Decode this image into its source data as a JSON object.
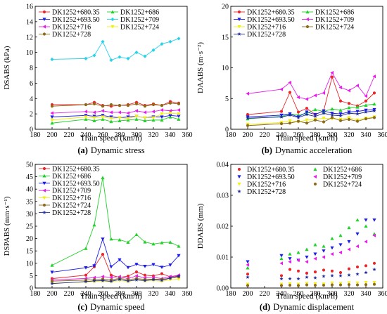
{
  "series_styles": {
    "DK1252+680.35": {
      "color": "#e8262b",
      "marker": "circle"
    },
    "DK1252+686": {
      "color": "#22d12a",
      "marker": "triangle-up"
    },
    "DK1252+693.50": {
      "color": "#1c1ce6",
      "marker": "triangle-down"
    },
    "DK1252+709": {
      "color": "#29d2ea",
      "marker": "diamond"
    },
    "DK1252+716": {
      "color": "#f2ef18",
      "marker": "triangle-down"
    },
    "DK1252+724": {
      "color": "#8c6a1a",
      "marker": "circle"
    },
    "DK1252+728": {
      "color": "#1e2b9c",
      "marker": "star"
    },
    "DK1252+716b": {
      "color": "#e51ee8",
      "marker": "triangle-left"
    }
  },
  "chart_data": [
    {
      "type": "line",
      "caption": {
        "label": "(a)",
        "text": "Dynamic stress"
      },
      "xlabel": "Train speed (km/h)",
      "ylabel": "DSABS (kPa)",
      "xlim": [
        180,
        360
      ],
      "ylim": [
        0,
        16
      ],
      "xticks": [
        180,
        200,
        220,
        240,
        260,
        280,
        300,
        320,
        340,
        360
      ],
      "yticks": [
        0,
        2,
        4,
        6,
        8,
        10,
        12,
        14,
        16
      ],
      "ytick_labels": [
        "0",
        "2",
        "4",
        "6",
        "8",
        "10",
        "12",
        "14",
        "16"
      ],
      "legend": {
        "placement": "top",
        "columns": 2
      },
      "x": [
        200,
        240,
        250,
        260,
        270,
        280,
        290,
        300,
        310,
        320,
        330,
        340,
        350
      ],
      "series": [
        {
          "name": "DK1252+680.35",
          "style": "DK1252+680.35",
          "values": [
            3.2,
            3.2,
            3.5,
            3.1,
            3.0,
            3.1,
            3.2,
            3.5,
            3.1,
            3.3,
            3.1,
            3.6,
            3.4
          ]
        },
        {
          "name": "DK1252+686",
          "style": "DK1252+686",
          "values": [
            0.8,
            1.3,
            1.1,
            1.3,
            1.0,
            1.1,
            1.2,
            1.3,
            1.1,
            1.2,
            1.2,
            1.6,
            1.3
          ]
        },
        {
          "name": "DK1252+693.50",
          "style": "DK1252+693.50",
          "values": [
            1.6,
            1.8,
            1.7,
            1.8,
            1.6,
            1.5,
            1.6,
            1.7,
            1.5,
            1.6,
            1.6,
            1.8,
            1.7
          ]
        },
        {
          "name": "DK1252+709",
          "style": "DK1252+709",
          "values": [
            9.1,
            9.2,
            9.6,
            11.4,
            9.0,
            9.4,
            9.2,
            10.0,
            9.5,
            10.3,
            11.1,
            11.4,
            11.8
          ]
        },
        {
          "name": "DK1252+716",
          "style": "DK1252+716b",
          "values": [
            2.1,
            2.3,
            2.2,
            2.4,
            2.2,
            2.2,
            2.1,
            2.4,
            2.2,
            2.3,
            2.5,
            2.4,
            2.5
          ]
        },
        {
          "name": "DK1252+724",
          "style": "DK1252+716",
          "values": [
            1.2,
            1.6,
            1.5,
            1.6,
            1.4,
            1.5,
            1.4,
            1.7,
            1.5,
            1.5,
            2.0,
            2.1,
            2.0
          ]
        },
        {
          "name": "DK1252+728",
          "style": "DK1252+724",
          "values": [
            3.0,
            3.2,
            3.3,
            3.0,
            3.2,
            3.1,
            3.1,
            3.3,
            3.0,
            3.2,
            3.1,
            3.4,
            3.3
          ]
        }
      ]
    },
    {
      "type": "line",
      "caption": {
        "label": "(b)",
        "text": "Dynamic acceleration"
      },
      "xlabel": "Train speed (km/h)",
      "ylabel": "DAABS (m·s⁻²)",
      "xlim": [
        180,
        360
      ],
      "ylim": [
        0,
        20
      ],
      "xticks": [
        180,
        200,
        220,
        240,
        260,
        280,
        300,
        320,
        340,
        360
      ],
      "yticks": [
        0,
        5,
        10,
        15,
        20
      ],
      "ytick_labels": [
        "0",
        "5",
        "10",
        "15",
        "20"
      ],
      "legend": {
        "placement": "top",
        "columns": 2
      },
      "x": [
        200,
        240,
        250,
        260,
        270,
        280,
        290,
        300,
        310,
        320,
        330,
        340,
        350
      ],
      "series": [
        {
          "name": "DK1252+680.35",
          "style": "DK1252+680.35",
          "values": [
            2.4,
            2.9,
            6.0,
            2.8,
            3.4,
            2.4,
            3.0,
            8.5,
            4.6,
            4.2,
            3.8,
            4.6,
            5.9
          ]
        },
        {
          "name": "DK1252+686",
          "style": "DK1252+686",
          "values": [
            1.7,
            2.1,
            2.5,
            2.3,
            2.6,
            3.2,
            2.9,
            3.3,
            3.1,
            3.5,
            3.6,
            3.9,
            4.1
          ]
        },
        {
          "name": "DK1252+693.50",
          "style": "DK1252+693.50",
          "values": [
            2.0,
            2.3,
            2.5,
            2.0,
            2.8,
            2.4,
            3.0,
            2.6,
            2.5,
            2.8,
            2.9,
            3.1,
            3.2
          ]
        },
        {
          "name": "DK1252+709",
          "style": "DK1252+716b",
          "values": [
            5.8,
            6.5,
            7.6,
            5.2,
            4.9,
            5.5,
            5.9,
            9.2,
            6.8,
            6.3,
            7.1,
            5.4,
            8.6
          ]
        },
        {
          "name": "DK1252+716",
          "style": "DK1252+716",
          "values": [
            0.8,
            1.1,
            1.4,
            1.2,
            1.5,
            1.6,
            1.8,
            1.7,
            1.6,
            1.9,
            1.5,
            1.8,
            2.0
          ]
        },
        {
          "name": "DK1252+724",
          "style": "DK1252+724",
          "values": [
            0.6,
            0.9,
            1.0,
            1.3,
            1.0,
            1.5,
            1.2,
            1.9,
            1.4,
            1.6,
            1.3,
            1.7,
            1.9
          ]
        },
        {
          "name": "DK1252+728",
          "style": "DK1252+728",
          "values": [
            1.8,
            2.0,
            2.3,
            1.9,
            2.4,
            2.1,
            2.6,
            2.3,
            2.2,
            2.6,
            2.5,
            2.8,
            3.0
          ]
        }
      ]
    },
    {
      "type": "line",
      "caption": {
        "label": "(c)",
        "text": "Dynamic speed"
      },
      "xlabel": "Train speed (km/h)",
      "ylabel": "DSPABS (mm·s⁻¹)",
      "xlim": [
        180,
        360
      ],
      "ylim": [
        0,
        50
      ],
      "xticks": [
        180,
        200,
        220,
        240,
        260,
        280,
        300,
        320,
        340,
        360
      ],
      "yticks": [
        0,
        5,
        10,
        15,
        20,
        25,
        30,
        35,
        40,
        45,
        50
      ],
      "ytick_labels": [
        "0",
        "5",
        "10",
        "15",
        "20",
        "25",
        "30",
        "35",
        "40",
        "45",
        "50"
      ],
      "legend": {
        "placement": "top-left",
        "columns": 1
      },
      "x": [
        200,
        240,
        250,
        260,
        270,
        280,
        290,
        300,
        310,
        320,
        330,
        340,
        350
      ],
      "series": [
        {
          "name": "DK1252+680.35",
          "style": "DK1252+680.35",
          "values": [
            3.8,
            5.2,
            8.6,
            13.6,
            5.2,
            4.3,
            4.8,
            6.5,
            5.2,
            4.9,
            5.8,
            4.5,
            5.0
          ]
        },
        {
          "name": "DK1252+686",
          "style": "DK1252+686",
          "values": [
            9.2,
            16.0,
            25.5,
            44.6,
            19.8,
            19.5,
            18.5,
            21.6,
            18.6,
            17.8,
            18.3,
            18.5,
            16.9
          ]
        },
        {
          "name": "DK1252+693.50",
          "style": "DK1252+693.50",
          "values": [
            6.4,
            8.2,
            9.0,
            19.8,
            8.6,
            11.4,
            8.3,
            9.6,
            8.8,
            9.5,
            8.4,
            9.3,
            13.1
          ]
        },
        {
          "name": "DK1252+709",
          "style": "DK1252+716b",
          "values": [
            3.2,
            3.9,
            4.2,
            4.6,
            4.3,
            4.6,
            3.8,
            4.9,
            4.1,
            4.3,
            3.8,
            4.6,
            5.2
          ]
        },
        {
          "name": "DK1252+716",
          "style": "DK1252+716",
          "values": [
            2.0,
            2.4,
            2.6,
            2.8,
            2.5,
            3.0,
            2.6,
            3.2,
            2.8,
            3.0,
            2.7,
            3.4,
            3.6
          ]
        },
        {
          "name": "DK1252+724",
          "style": "DK1252+724",
          "values": [
            2.8,
            3.2,
            3.4,
            3.6,
            3.3,
            3.9,
            3.4,
            3.8,
            3.5,
            3.6,
            3.5,
            4.0,
            4.5
          ]
        },
        {
          "name": "DK1252+728",
          "style": "DK1252+728",
          "values": [
            1.8,
            2.6,
            2.9,
            3.0,
            2.7,
            3.5,
            2.8,
            3.3,
            3.0,
            3.4,
            3.1,
            4.0,
            4.8
          ]
        }
      ]
    },
    {
      "type": "scatter",
      "caption": {
        "label": "(d)",
        "text": "Dynamic displacement"
      },
      "xlabel": "Train speed (km/h)",
      "ylabel": "DDABS (mm)",
      "xlim": [
        180,
        360
      ],
      "ylim": [
        0,
        0.04
      ],
      "xticks": [
        180,
        200,
        220,
        240,
        260,
        280,
        300,
        320,
        340,
        360
      ],
      "yticks": [
        0,
        0.01,
        0.02,
        0.03,
        0.04
      ],
      "ytick_labels": [
        "0.00",
        "0.01",
        "0.02",
        "0.03",
        "0.04"
      ],
      "legend": {
        "placement": "top",
        "columns": 2
      },
      "x": [
        200,
        240,
        250,
        260,
        270,
        280,
        290,
        300,
        310,
        320,
        330,
        340,
        350
      ],
      "series": [
        {
          "name": "DK1252+680.35",
          "style": "DK1252+680.35",
          "values": [
            0.0045,
            0.004,
            0.006,
            0.0055,
            0.0048,
            0.0052,
            0.0058,
            0.0055,
            0.005,
            0.0062,
            0.0068,
            0.0072,
            0.008
          ]
        },
        {
          "name": "DK1252+686",
          "style": "DK1252+686",
          "values": [
            0.0065,
            0.0095,
            0.011,
            0.0115,
            0.0125,
            0.014,
            0.0135,
            0.016,
            0.017,
            0.0195,
            0.022,
            0.02,
            0.0175
          ]
        },
        {
          "name": "DK1252+693.50",
          "style": "DK1252+693.50",
          "values": [
            0.0085,
            0.0105,
            0.0095,
            0.009,
            0.01,
            0.011,
            0.012,
            0.013,
            0.014,
            0.015,
            0.0175,
            0.022,
            0.022
          ]
        },
        {
          "name": "DK1252+709",
          "style": "DK1252+716b",
          "values": [
            0.0075,
            0.008,
            0.0085,
            0.009,
            0.0085,
            0.0095,
            0.01,
            0.011,
            0.0115,
            0.0125,
            0.0135,
            0.015,
            0.017
          ]
        },
        {
          "name": "DK1252+716",
          "style": "DK1252+716",
          "values": [
            0.0012,
            0.0012,
            0.0014,
            0.0012,
            0.0015,
            0.0014,
            0.0013,
            0.0016,
            0.0015,
            0.0017,
            0.0016,
            0.0018,
            0.0018
          ]
        },
        {
          "name": "DK1252+724",
          "style": "DK1252+724",
          "values": [
            0.0008,
            0.0008,
            0.0009,
            0.0008,
            0.001,
            0.0009,
            0.0009,
            0.001,
            0.001,
            0.0011,
            0.001,
            0.0011,
            0.0012
          ]
        },
        {
          "name": "DK1252+728",
          "style": "DK1252+728",
          "values": [
            0.0035,
            0.003,
            0.003,
            0.003,
            0.0035,
            0.0033,
            0.0038,
            0.004,
            0.004,
            0.0042,
            0.0045,
            0.005,
            0.006
          ]
        }
      ]
    }
  ]
}
